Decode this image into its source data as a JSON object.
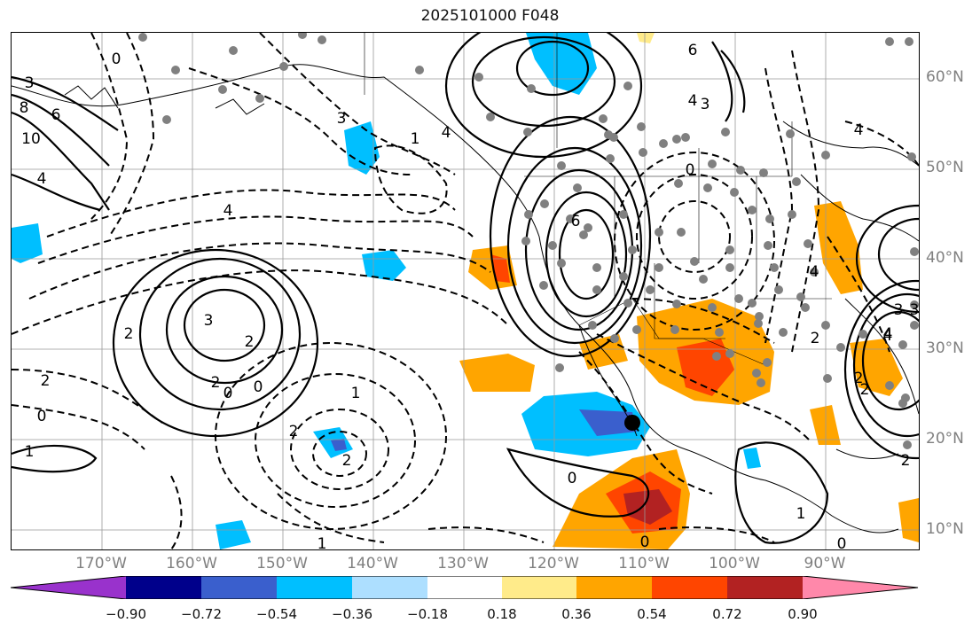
{
  "title": "2025101000 F048",
  "lat_labels": [
    "60°N",
    "50°N",
    "40°N",
    "30°N",
    "20°N",
    "10°N"
  ],
  "lon_labels": [
    "170°W",
    "160°W",
    "150°W",
    "140°W",
    "130°W",
    "120°W",
    "110°W",
    "100°W",
    "90°W"
  ],
  "colorbar": {
    "ticks": [
      "−0.90",
      "−0.72",
      "−0.54",
      "−0.36",
      "−0.18",
      "0.18",
      "0.36",
      "0.54",
      "0.72",
      "0.90"
    ],
    "colors": [
      "#9932CC",
      "#00008B",
      "#3A5FCD",
      "#00BFFF",
      "#ADDFFF",
      "#FFFFFF",
      "#FFEB8A",
      "#FFA500",
      "#FF4500",
      "#B22222",
      "#FF88AA"
    ]
  },
  "contour_labels": [
    "3",
    "0",
    "6",
    "8",
    "10",
    "4",
    "3",
    "4",
    "6",
    "4",
    "3",
    "4",
    "1",
    "4",
    "0",
    "6",
    "4",
    "3",
    "4",
    "2",
    "3",
    "2",
    "2",
    "2",
    "0",
    "0",
    "2",
    "1",
    "1",
    "0",
    "2",
    "2",
    "2",
    "0",
    "0",
    "0",
    "1",
    "2",
    "3",
    "4",
    "2",
    "1"
  ],
  "colors": {
    "gray_point": "#808080",
    "grid": "#999999",
    "marker": "#000000"
  }
}
